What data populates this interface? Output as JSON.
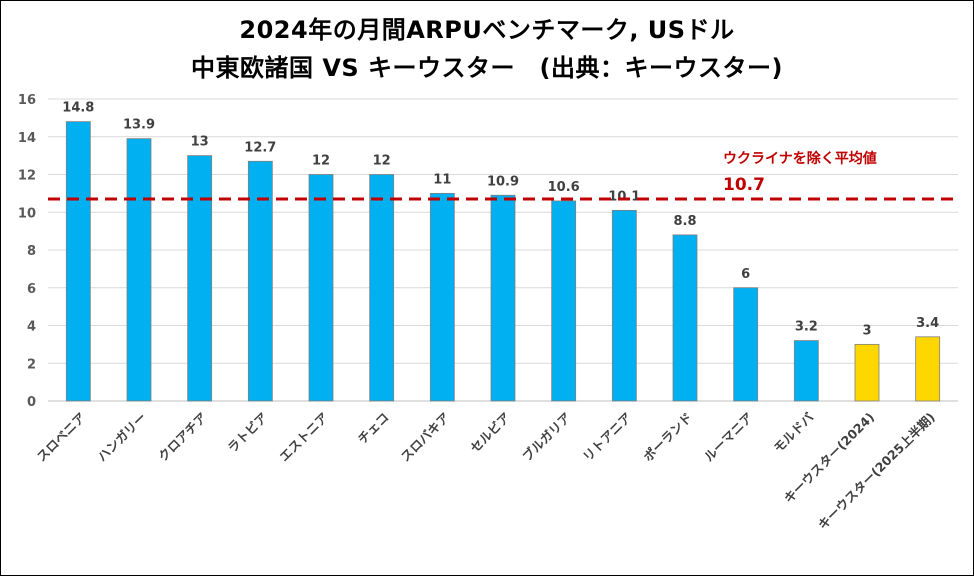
{
  "titles": {
    "line1": "2024年の月間ARPUベンチマーク, USドル",
    "line2": "中東欧諸国 VS キーウスター　(出典：キーウスター)"
  },
  "colors": {
    "bar": "#00B0F0",
    "highlight": "#FFD700",
    "average_line": "#C00000",
    "grid": "#D9D9D9"
  },
  "annotation": {
    "label": "ウクライナを除く平均値",
    "value_text": "10.7"
  },
  "chart_data": {
    "type": "bar",
    "categories": [
      "スロベニア",
      "ハンガリー",
      "クロアチア",
      "ラトビア",
      "エストニア",
      "チェコ",
      "スロバキア",
      "セルビア",
      "ブルガリア",
      "リトアニア",
      "ポーランド",
      "ルーマニア",
      "モルドバ",
      "キーウスター(2024)",
      "キーウスター(2025上半期)"
    ],
    "values": [
      14.8,
      13.9,
      13,
      12.7,
      12,
      12,
      11,
      10.9,
      10.6,
      10.1,
      8.8,
      6,
      3.2,
      3,
      3.4
    ],
    "value_labels": [
      "14.8",
      "13.9",
      "13",
      "12.7",
      "12",
      "12",
      "11",
      "10.9",
      "10.6",
      "10.1",
      "8.8",
      "6",
      "3.2",
      "3",
      "3.4"
    ],
    "highlighted": [
      13,
      14
    ],
    "ylim": [
      0,
      16
    ],
    "yticks": [
      0,
      2,
      4,
      6,
      8,
      10,
      12,
      14,
      16
    ],
    "average": 10.7,
    "grid": true,
    "xlabel": "",
    "ylabel": ""
  }
}
